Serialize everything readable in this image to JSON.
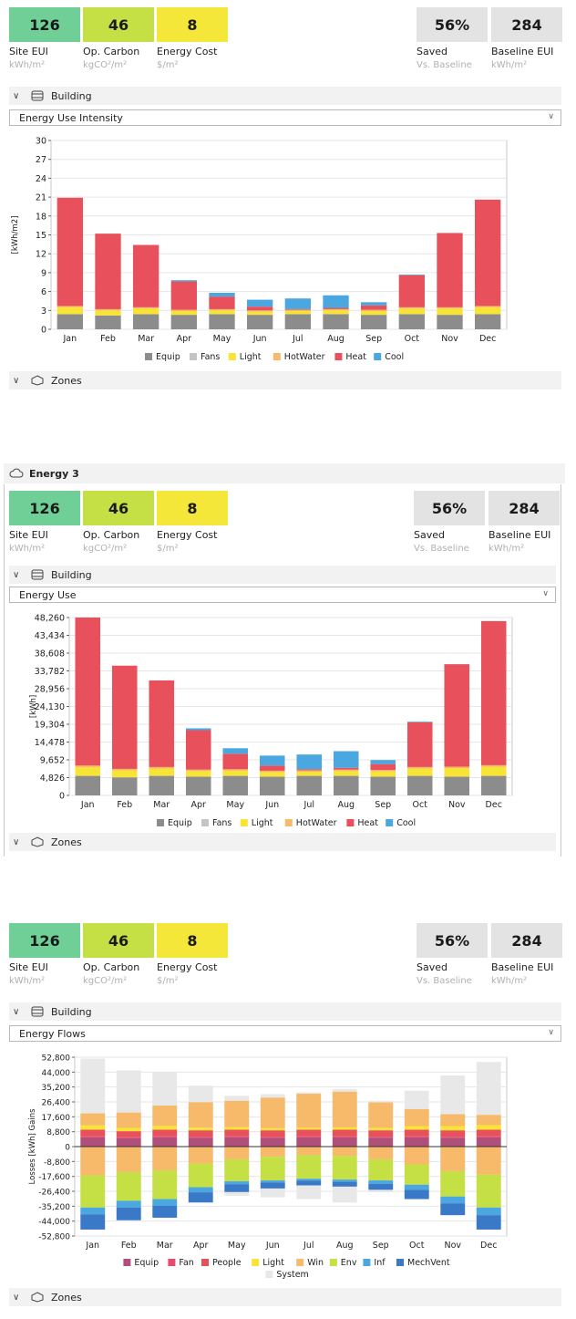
{
  "colors": {
    "site_eui": "#6fcf97",
    "op_carbon": "#c5e044",
    "energy_cost": "#f5e63a",
    "neutral_kpi": "#e3e3e3",
    "equip": "#8c8c8c",
    "fans": "#c4c4c4",
    "light": "#f7e435",
    "hotwater": "#f7b96a",
    "heat": "#e8505b",
    "cool": "#4aa7e0",
    "flow_equip": "#b0507a",
    "flow_fan": "#e84a6d",
    "flow_people": "#e8505b",
    "flow_light": "#f7e435",
    "flow_win": "#f7b96a",
    "flow_env": "#c5e044",
    "flow_inf": "#4aa7e0",
    "flow_mechvent": "#3a78c8",
    "flow_system": "#e8e8e8"
  },
  "kpis": {
    "site_eui": {
      "value": "126",
      "label": "Site EUI",
      "unit": "kWh/m²"
    },
    "op_carbon": {
      "value": "46",
      "label": "Op. Carbon",
      "unit": "kgCO²/m²"
    },
    "energy_cost": {
      "value": "8",
      "label": "Energy Cost",
      "unit": "$/m²"
    },
    "saved": {
      "value": "56%",
      "label": "Saved",
      "unit": "Vs. Baseline"
    },
    "baseline_eui": {
      "value": "284",
      "label": "Baseline EUI",
      "unit": "kWh/m²"
    }
  },
  "sections": {
    "building": "Building",
    "zones": "Zones",
    "energy3": "Energy 3"
  },
  "selects": {
    "panel1": "Energy Use Intensity",
    "panel2": "Energy Use",
    "panel3": "Energy Flows"
  },
  "chart_data": [
    {
      "type": "bar",
      "stacked": true,
      "ylabel": "[kWh/m2]",
      "ylim": [
        0,
        30
      ],
      "yticks": [
        "0",
        "3",
        "6",
        "9",
        "12",
        "15",
        "18",
        "21",
        "24",
        "27",
        "30"
      ],
      "categories": [
        "Jan",
        "Feb",
        "Mar",
        "Apr",
        "May",
        "Jun",
        "Jul",
        "Aug",
        "Sep",
        "Oct",
        "Nov",
        "Dec"
      ],
      "grid": true,
      "legend_position": "bottom",
      "series": [
        {
          "name": "Equip",
          "color": "#8c8c8c",
          "values": [
            2.4,
            2.2,
            2.4,
            2.3,
            2.4,
            2.3,
            2.4,
            2.4,
            2.3,
            2.4,
            2.3,
            2.4
          ]
        },
        {
          "name": "Fans",
          "color": "#c4c4c4",
          "values": [
            0,
            0,
            0,
            0,
            0,
            0,
            0,
            0,
            0,
            0,
            0,
            0
          ]
        },
        {
          "name": "Light",
          "color": "#f7e435",
          "values": [
            1.1,
            0.8,
            0.9,
            0.6,
            0.6,
            0.5,
            0.5,
            0.6,
            0.6,
            0.9,
            1.0,
            1.1
          ]
        },
        {
          "name": "HotWater",
          "color": "#f7b96a",
          "values": [
            0.2,
            0.2,
            0.2,
            0.2,
            0.2,
            0.2,
            0.2,
            0.2,
            0.2,
            0.2,
            0.2,
            0.2
          ]
        },
        {
          "name": "Heat",
          "color": "#e8505b",
          "values": [
            17.2,
            12.0,
            9.9,
            4.5,
            2.0,
            0.6,
            0.1,
            0.2,
            0.7,
            5.1,
            11.8,
            16.9
          ]
        },
        {
          "name": "Cool",
          "color": "#4aa7e0",
          "values": [
            0,
            0,
            0,
            0.2,
            0.6,
            1.1,
            1.7,
            2.0,
            0.5,
            0.1,
            0,
            0
          ]
        }
      ]
    },
    {
      "type": "bar",
      "stacked": true,
      "ylabel": "[kWh]",
      "ylim": [
        0,
        48260
      ],
      "yticks": [
        "0",
        "4,826",
        "9,652",
        "14,478",
        "19,304",
        "24,130",
        "28,956",
        "33,782",
        "38,608",
        "43,434",
        "48,260"
      ],
      "categories": [
        "Jan",
        "Feb",
        "Mar",
        "Apr",
        "May",
        "Jun",
        "Jul",
        "Aug",
        "Sep",
        "Oct",
        "Nov",
        "Dec"
      ],
      "grid": true,
      "legend_position": "bottom",
      "series": [
        {
          "name": "Equip",
          "color": "#8c8c8c",
          "values": [
            5300,
            4900,
            5300,
            5100,
            5300,
            5100,
            5300,
            5300,
            5100,
            5300,
            5100,
            5300
          ]
        },
        {
          "name": "Fans",
          "color": "#c4c4c4",
          "values": [
            0,
            0,
            0,
            0,
            0,
            0,
            0,
            0,
            0,
            0,
            0,
            0
          ]
        },
        {
          "name": "Light",
          "color": "#f7e435",
          "values": [
            2400,
            1900,
            2000,
            1500,
            1400,
            1200,
            1100,
            1300,
            1400,
            2000,
            2300,
            2500
          ]
        },
        {
          "name": "HotWater",
          "color": "#f7b96a",
          "values": [
            400,
            400,
            400,
            400,
            400,
            400,
            400,
            400,
            400,
            400,
            400,
            400
          ]
        },
        {
          "name": "Heat",
          "color": "#e8505b",
          "values": [
            40160,
            28000,
            23500,
            10700,
            4200,
            1400,
            300,
            500,
            1600,
            12100,
            27800,
            39100
          ]
        },
        {
          "name": "Cool",
          "color": "#4aa7e0",
          "values": [
            0,
            0,
            0,
            500,
            1500,
            2700,
            4000,
            4500,
            1100,
            200,
            0,
            0
          ]
        }
      ]
    },
    {
      "type": "bar",
      "stacked": true,
      "diverging": true,
      "ylabel": "Losses [kWh] Gains",
      "ylim": [
        -52800,
        52800
      ],
      "yticks": [
        "-52,800",
        "-44,000",
        "-35,200",
        "-26,400",
        "-17,600",
        "-8,800",
        "0",
        "8,800",
        "17,600",
        "26,400",
        "35,200",
        "44,000",
        "52,800"
      ],
      "categories": [
        "Jan",
        "Feb",
        "Mar",
        "Apr",
        "May",
        "Jun",
        "Jul",
        "Aug",
        "Sep",
        "Oct",
        "Nov",
        "Dec"
      ],
      "grid": true,
      "legend_position": "bottom",
      "system": {
        "name": "System",
        "color": "#e8e8e8",
        "pos": [
          52000,
          45000,
          44000,
          36000,
          30000,
          31000,
          32000,
          34000,
          27000,
          33000,
          42000,
          50000
        ],
        "neg": [
          -48000,
          -42000,
          -41000,
          -33000,
          -29000,
          -30000,
          -31000,
          -33000,
          -27000,
          -30000,
          -38000,
          -47000
        ]
      },
      "series": [
        {
          "name": "Equip",
          "color": "#b0507a",
          "pos": [
            5500,
            5000,
            5500,
            5300,
            5500,
            5300,
            5500,
            5500,
            5300,
            5500,
            5300,
            5500
          ],
          "neg": [
            0,
            0,
            0,
            0,
            0,
            0,
            0,
            0,
            0,
            0,
            0,
            0
          ]
        },
        {
          "name": "Fan",
          "color": "#e84a6d",
          "pos": [
            500,
            500,
            500,
            500,
            500,
            500,
            500,
            500,
            500,
            500,
            500,
            500
          ],
          "neg": [
            0,
            0,
            0,
            0,
            0,
            0,
            0,
            0,
            0,
            0,
            0,
            0
          ]
        },
        {
          "name": "People",
          "color": "#e8505b",
          "pos": [
            4000,
            3600,
            4000,
            3800,
            4000,
            3800,
            4000,
            4000,
            3800,
            4000,
            3800,
            4000
          ],
          "neg": [
            0,
            0,
            0,
            0,
            0,
            0,
            0,
            0,
            0,
            0,
            0,
            0
          ]
        },
        {
          "name": "Light",
          "color": "#f7e435",
          "pos": [
            2600,
            2000,
            2200,
            1600,
            1500,
            1300,
            1200,
            1400,
            1500,
            2100,
            2500,
            2700
          ],
          "neg": [
            0,
            0,
            0,
            0,
            0,
            0,
            0,
            0,
            0,
            0,
            0,
            0
          ]
        },
        {
          "name": "Win",
          "color": "#f7b96a",
          "pos": [
            7000,
            9000,
            12000,
            15000,
            15500,
            18000,
            20000,
            21000,
            15000,
            10000,
            7000,
            6000
          ],
          "neg": [
            -17000,
            -15000,
            -14000,
            -10000,
            -7500,
            -6000,
            -5000,
            -5500,
            -7500,
            -10500,
            -14500,
            -16500
          ]
        },
        {
          "name": "Env",
          "color": "#c5e044",
          "pos": [
            0,
            0,
            0,
            0,
            0,
            0,
            0,
            0,
            0,
            0,
            0,
            0
          ],
          "neg": [
            -19000,
            -17000,
            -17000,
            -14000,
            -13000,
            -14000,
            -14000,
            -14000,
            -12500,
            -12000,
            -15000,
            -19500
          ]
        },
        {
          "name": "Inf",
          "color": "#4aa7e0",
          "pos": [
            0,
            0,
            0,
            0,
            0,
            0,
            0,
            0,
            0,
            0,
            0,
            0
          ],
          "neg": [
            -4000,
            -4000,
            -4000,
            -3000,
            -1800,
            -1200,
            -1100,
            -1300,
            -2000,
            -3000,
            -4000,
            -4500
          ]
        },
        {
          "name": "MechVent",
          "color": "#3a78c8",
          "pos": [
            0,
            0,
            0,
            0,
            0,
            0,
            0,
            0,
            0,
            0,
            0,
            0
          ],
          "neg": [
            -9000,
            -7500,
            -7000,
            -6000,
            -4500,
            -3500,
            -2800,
            -2800,
            -3500,
            -5500,
            -7000,
            -8500
          ]
        }
      ]
    }
  ]
}
